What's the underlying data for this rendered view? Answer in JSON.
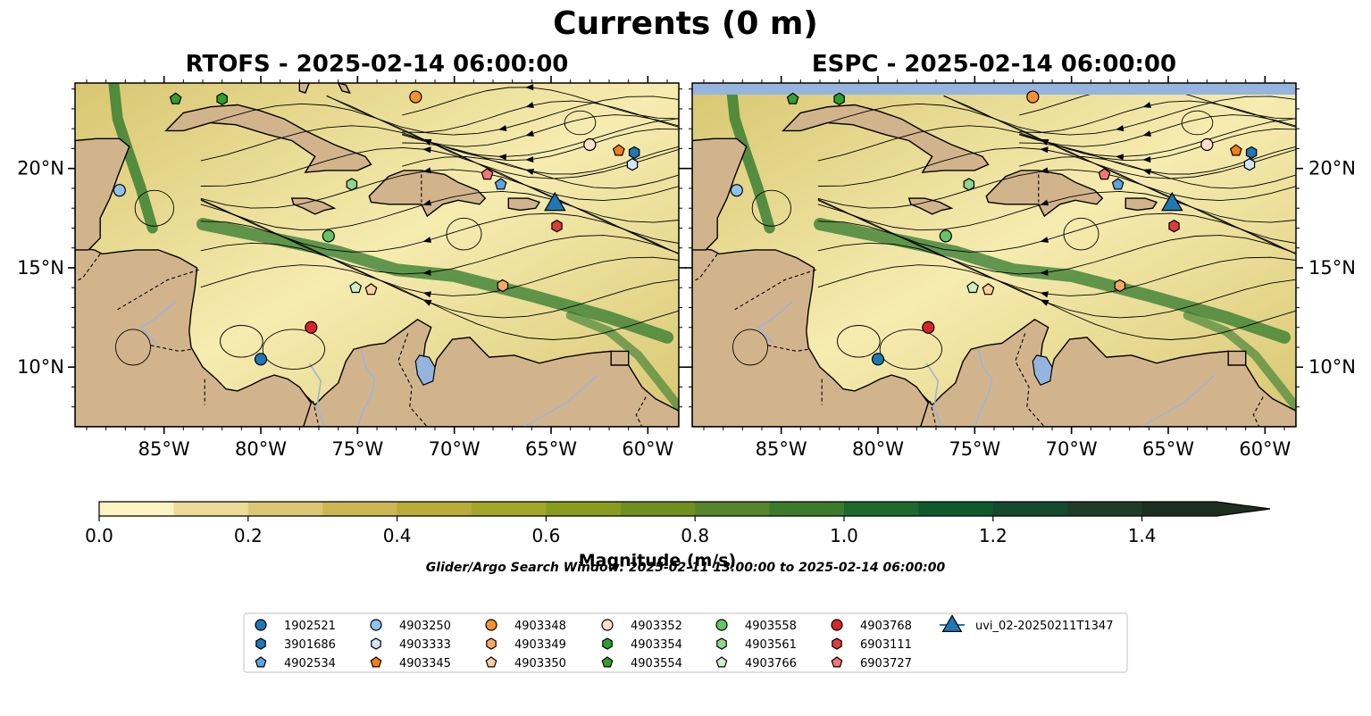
{
  "figure": {
    "title": "Currents (0 m)",
    "footer": "Glider/Argo Search Window: 2025-02-11 13:00:00 to 2025-02-14 06:00:00"
  },
  "panels": [
    {
      "title": "RTOFS - 2025-02-14 06:00:00"
    },
    {
      "title": "ESPC - 2025-02-14 06:00:00"
    }
  ],
  "colorbar": {
    "label": "Magnitude (m/s)",
    "min": 0.0,
    "max": 1.5,
    "step": 0.1,
    "ticks": [
      "0.0",
      "0.2",
      "0.4",
      "0.6",
      "0.8",
      "1.0",
      "1.2",
      "1.4"
    ],
    "colors": [
      "#fbf4c0",
      "#ecdc96",
      "#dcc775",
      "#cdb755",
      "#b9ac38",
      "#a3a628",
      "#8a9c1e",
      "#6f8f1f",
      "#56852a",
      "#3c7a2c",
      "#1e6a2e",
      "#0f5a2c",
      "#154a2c",
      "#1e3c28",
      "#1d2f1f"
    ]
  },
  "map": {
    "colors": {
      "land": "#d2b48c",
      "lake": "#95b5df",
      "ocean_low": "#f6ecb0",
      "ocean_mid": "#d8c670",
      "ocean_high": "#2f7a2d"
    },
    "lat_labels": [
      "20°N",
      "15°N",
      "10°N"
    ],
    "lon_labels": [
      "85°W",
      "80°W",
      "75°W",
      "70°W",
      "65°W",
      "60°W"
    ]
  },
  "chart_data": {
    "type": "scatter",
    "title": "Currents (0 m)",
    "xlim": [
      -89.6,
      -58.4
    ],
    "ylim": [
      7.0,
      24.3
    ],
    "series": [
      {
        "name": "1902521",
        "marker": "circle",
        "color": "#1f77b4",
        "lon": -80.0,
        "lat": 10.4
      },
      {
        "name": "3901686",
        "marker": "hexagon",
        "color": "#1f77b4",
        "lon": -60.7,
        "lat": 20.8
      },
      {
        "name": "4902534",
        "marker": "pentagon",
        "color": "#5fa3df",
        "lon": -67.6,
        "lat": 19.2
      },
      {
        "name": "4903250",
        "marker": "circle",
        "color": "#8fc3ec",
        "lon": -87.3,
        "lat": 18.9
      },
      {
        "name": "4903333",
        "marker": "hexagon",
        "color": "#cfe6f7",
        "lon": -60.8,
        "lat": 20.2
      },
      {
        "name": "4903345",
        "marker": "pentagon",
        "color": "#f57d12",
        "lon": -61.5,
        "lat": 20.9
      },
      {
        "name": "4903348",
        "marker": "circle",
        "color": "#f59236",
        "lon": -72.0,
        "lat": 23.6
      },
      {
        "name": "4903349",
        "marker": "hexagon",
        "color": "#f9a866",
        "lon": -67.5,
        "lat": 14.1
      },
      {
        "name": "4903350",
        "marker": "pentagon",
        "color": "#fdcf9f",
        "lon": -74.3,
        "lat": 13.9
      },
      {
        "name": "4903352",
        "marker": "circle",
        "color": "#fde0cc",
        "lon": -63.0,
        "lat": 21.2
      },
      {
        "name": "4903354",
        "marker": "hexagon",
        "color": "#2ca02c",
        "lon": -82.0,
        "lat": 23.5
      },
      {
        "name": "4903554",
        "marker": "pentagon",
        "color": "#33a02c",
        "lon": -84.4,
        "lat": 23.5
      },
      {
        "name": "4903558",
        "marker": "circle",
        "color": "#66c266",
        "lon": -76.5,
        "lat": 16.6
      },
      {
        "name": "4903561",
        "marker": "hexagon",
        "color": "#8fd48f",
        "lon": -75.3,
        "lat": 19.2
      },
      {
        "name": "4903766",
        "marker": "pentagon",
        "color": "#c9f1c6",
        "lon": -75.1,
        "lat": 14.0
      },
      {
        "name": "4903768",
        "marker": "circle",
        "color": "#d62728",
        "lon": -77.4,
        "lat": 12.0
      },
      {
        "name": "6903111",
        "marker": "hexagon",
        "color": "#dc3d3b",
        "lon": -64.7,
        "lat": 17.1
      },
      {
        "name": "6903727",
        "marker": "pentagon",
        "color": "#f07878",
        "lon": -68.3,
        "lat": 19.7
      },
      {
        "name": "uvi_02-20250211T1347",
        "marker": "triangle",
        "color": "#1f77b4",
        "lon": -64.8,
        "lat": 18.3
      }
    ]
  }
}
